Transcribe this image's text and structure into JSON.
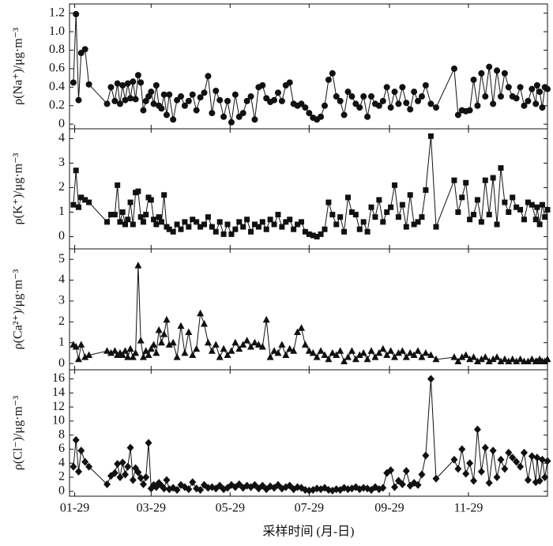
{
  "chart_data": [
    {
      "type": "line",
      "ylabel": "ρ(Na⁺)/μg·m⁻³",
      "color": "#111111",
      "marker": "circle",
      "x": [
        28,
        30,
        32,
        34,
        37,
        40,
        54,
        57,
        60,
        62,
        64,
        66,
        68,
        70,
        72,
        74,
        76,
        78,
        80,
        82,
        84,
        86,
        88,
        90,
        92,
        94,
        96,
        98,
        100,
        102,
        105,
        108,
        111,
        114,
        117,
        120,
        123,
        126,
        129,
        132,
        135,
        138,
        141,
        144,
        147,
        150,
        153,
        156,
        159,
        162,
        165,
        168,
        171,
        174,
        177,
        180,
        183,
        186,
        189,
        192,
        195,
        198,
        201,
        204,
        207,
        210,
        213,
        216,
        219,
        222,
        225,
        228,
        231,
        234,
        237,
        240,
        243,
        246,
        249,
        252,
        255,
        258,
        261,
        264,
        267,
        270,
        273,
        276,
        279,
        282,
        285,
        288,
        291,
        294,
        297,
        300,
        304,
        308,
        322,
        325,
        328,
        331,
        334,
        337,
        340,
        343,
        346,
        349,
        352,
        355,
        358,
        361,
        364,
        367,
        370,
        373,
        376,
        379,
        382,
        385,
        386,
        388,
        390,
        392,
        394
      ],
      "values": [
        0.45,
        1.19,
        0.26,
        0.77,
        0.81,
        0.43,
        0.22,
        0.4,
        0.25,
        0.44,
        0.22,
        0.42,
        0.26,
        0.44,
        0.28,
        0.46,
        0.27,
        0.53,
        0.45,
        0.15,
        0.25,
        0.3,
        0.35,
        0.22,
        0.42,
        0.2,
        0.17,
        0.32,
        0.1,
        0.32,
        0.05,
        0.26,
        0.3,
        0.2,
        0.25,
        0.32,
        0.15,
        0.29,
        0.34,
        0.52,
        0.12,
        0.36,
        0.26,
        0.08,
        0.25,
        0.02,
        0.32,
        0.08,
        0.12,
        0.25,
        0.3,
        0.05,
        0.4,
        0.42,
        0.28,
        0.24,
        0.26,
        0.34,
        0.25,
        0.42,
        0.45,
        0.22,
        0.2,
        0.22,
        0.18,
        0.12,
        0.07,
        0.05,
        0.08,
        0.2,
        0.48,
        0.55,
        0.3,
        0.25,
        0.1,
        0.35,
        0.3,
        0.22,
        0.18,
        0.3,
        0.08,
        0.3,
        0.22,
        0.2,
        0.25,
        0.4,
        0.18,
        0.35,
        0.22,
        0.4,
        0.23,
        0.16,
        0.35,
        0.25,
        0.3,
        0.42,
        0.22,
        0.18,
        0.6,
        0.1,
        0.15,
        0.14,
        0.15,
        0.48,
        0.2,
        0.55,
        0.3,
        0.62,
        0.22,
        0.58,
        0.3,
        0.55,
        0.4,
        0.3,
        0.28,
        0.4,
        0.2,
        0.25,
        0.38,
        0.22,
        0.42,
        0.35,
        0.18,
        0.4,
        0.38
      ],
      "xlim": [
        25,
        394
      ],
      "ylim": [
        -0.05,
        1.3
      ],
      "yticks": [
        0,
        0.2,
        0.4,
        0.6,
        0.8,
        {
          "value": 1,
          "label": "1.0"
        },
        1.2
      ]
    },
    {
      "type": "line",
      "ylabel": "ρ(K⁺)/μg·m⁻³",
      "color": "#111111",
      "marker": "square",
      "x": [
        28,
        30,
        32,
        34,
        37,
        40,
        54,
        57,
        60,
        62,
        64,
        66,
        68,
        70,
        72,
        74,
        76,
        78,
        80,
        82,
        84,
        86,
        88,
        90,
        92,
        94,
        96,
        98,
        100,
        102,
        105,
        108,
        111,
        114,
        117,
        120,
        123,
        126,
        129,
        132,
        135,
        138,
        141,
        144,
        147,
        150,
        153,
        156,
        159,
        162,
        165,
        168,
        171,
        174,
        177,
        180,
        183,
        186,
        189,
        192,
        195,
        198,
        201,
        204,
        207,
        210,
        213,
        216,
        219,
        222,
        225,
        228,
        231,
        234,
        237,
        240,
        243,
        246,
        249,
        252,
        255,
        258,
        261,
        264,
        267,
        270,
        273,
        276,
        279,
        282,
        285,
        288,
        291,
        294,
        297,
        300,
        304,
        308,
        322,
        325,
        328,
        331,
        334,
        337,
        340,
        343,
        346,
        349,
        352,
        355,
        358,
        361,
        364,
        367,
        370,
        373,
        376,
        379,
        382,
        385,
        386,
        388,
        390,
        392,
        394
      ],
      "values": [
        1.3,
        2.7,
        1.2,
        1.6,
        1.5,
        1.4,
        0.6,
        0.9,
        0.9,
        2.1,
        0.6,
        1.0,
        0.5,
        0.7,
        1.4,
        0.5,
        1.8,
        1.85,
        0.8,
        0.6,
        0.9,
        1.6,
        1.5,
        0.7,
        0.5,
        0.8,
        0.6,
        1.7,
        0.4,
        0.3,
        0.2,
        0.5,
        0.3,
        0.6,
        0.4,
        0.7,
        0.6,
        0.4,
        0.5,
        0.8,
        0.4,
        0.2,
        0.6,
        0.1,
        0.5,
        0.1,
        0.3,
        0.6,
        0.4,
        0.7,
        0.2,
        0.5,
        0.4,
        0.6,
        0.3,
        0.7,
        0.5,
        0.9,
        0.4,
        0.6,
        0.7,
        0.3,
        0.5,
        0.6,
        0.2,
        0.1,
        0.05,
        0,
        0.1,
        0.3,
        1.4,
        0.9,
        0.5,
        0.8,
        0.2,
        1.6,
        1.0,
        0.9,
        0.3,
        0.6,
        0.2,
        1.2,
        0.8,
        1.5,
        0.6,
        1.0,
        1.2,
        2.1,
        0.8,
        1.3,
        0.4,
        1.7,
        0.5,
        0.6,
        0.8,
        1.9,
        4.1,
        0.4,
        2.3,
        1.0,
        1.6,
        2.2,
        0.7,
        0.9,
        1.5,
        0.6,
        2.3,
        0.9,
        2.4,
        0.5,
        2.8,
        1.4,
        1.0,
        1.6,
        1.2,
        1.1,
        0.7,
        1.4,
        1.3,
        0.7,
        1.2,
        0.5,
        1.3,
        0.8,
        1.1
      ],
      "xlim": [
        25,
        394
      ],
      "ylim": [
        -0.5,
        4.4
      ],
      "yticks": [
        0,
        1,
        2,
        3,
        4
      ]
    },
    {
      "type": "line",
      "ylabel": "ρ(Ca²⁺)/μg·m⁻³",
      "color": "#111111",
      "marker": "triangle",
      "x": [
        28,
        30,
        32,
        34,
        37,
        40,
        54,
        57,
        60,
        62,
        64,
        66,
        68,
        70,
        72,
        74,
        76,
        78,
        80,
        82,
        84,
        86,
        88,
        90,
        92,
        94,
        96,
        98,
        100,
        102,
        105,
        108,
        111,
        114,
        117,
        120,
        123,
        126,
        129,
        132,
        135,
        138,
        141,
        144,
        147,
        150,
        153,
        156,
        159,
        162,
        165,
        168,
        171,
        174,
        177,
        180,
        183,
        186,
        189,
        192,
        195,
        198,
        201,
        204,
        207,
        210,
        213,
        216,
        219,
        222,
        225,
        228,
        231,
        234,
        237,
        240,
        243,
        246,
        249,
        252,
        255,
        258,
        261,
        264,
        267,
        270,
        273,
        276,
        279,
        282,
        285,
        288,
        291,
        294,
        297,
        300,
        304,
        308,
        322,
        325,
        328,
        331,
        334,
        337,
        340,
        343,
        346,
        349,
        352,
        355,
        358,
        361,
        364,
        367,
        370,
        373,
        376,
        379,
        382,
        385,
        386,
        388,
        390,
        392,
        394
      ],
      "values": [
        0.9,
        0.8,
        0.2,
        0.9,
        0.3,
        0.4,
        0.6,
        0.5,
        0.6,
        0.4,
        0.5,
        0.4,
        0.6,
        0.3,
        0.7,
        0.3,
        0.5,
        4.7,
        1.1,
        0.3,
        0.6,
        0.4,
        0.7,
        0.9,
        0.5,
        1.6,
        1.0,
        1.4,
        2.1,
        0.9,
        1.0,
        0.3,
        1.8,
        0.5,
        1.5,
        0.4,
        0.7,
        2.4,
        1.9,
        1.0,
        0.6,
        0.9,
        0.3,
        0.7,
        0.4,
        0.6,
        1.0,
        0.7,
        0.9,
        1.1,
        0.8,
        1.0,
        0.9,
        0.8,
        2.1,
        0.3,
        0.6,
        0.5,
        0.9,
        0.4,
        0.7,
        0.6,
        1.5,
        1.7,
        0.9,
        0.6,
        0.5,
        0.3,
        0.6,
        0.4,
        0.2,
        0.5,
        0.4,
        0.6,
        0.1,
        0.3,
        0.6,
        0.2,
        0.4,
        0.5,
        0.2,
        0.6,
        0.3,
        0.5,
        0.7,
        0.4,
        0.6,
        0.3,
        0.5,
        0.6,
        0.3,
        0.5,
        0.4,
        0.6,
        0.3,
        0.5,
        0.4,
        0.2,
        0.3,
        0.1,
        0.3,
        0.4,
        0.2,
        0.3,
        0.1,
        0.2,
        0.3,
        0.1,
        0.2,
        0.3,
        0.1,
        0.2,
        0.1,
        0.2,
        0.1,
        0.2,
        0.1,
        0.1,
        0.2,
        0.1,
        0.1,
        0.2,
        0.1,
        0.1,
        0.2
      ],
      "xlim": [
        25,
        394
      ],
      "ylim": [
        -0.3,
        5.5
      ],
      "yticks": [
        0,
        1,
        2,
        3,
        4,
        5
      ]
    },
    {
      "type": "line",
      "ylabel": "ρ(Cl⁻)/μg·m⁻³",
      "xlabel": "采样时间 (月-日)",
      "color": "#111111",
      "marker": "diamond",
      "x": [
        28,
        30,
        32,
        34,
        37,
        40,
        54,
        57,
        60,
        62,
        64,
        66,
        68,
        70,
        72,
        74,
        76,
        78,
        80,
        82,
        84,
        86,
        88,
        90,
        92,
        94,
        96,
        98,
        100,
        102,
        105,
        108,
        111,
        114,
        117,
        120,
        123,
        126,
        129,
        132,
        135,
        138,
        141,
        144,
        147,
        150,
        153,
        156,
        159,
        162,
        165,
        168,
        171,
        174,
        177,
        180,
        183,
        186,
        189,
        192,
        195,
        198,
        201,
        204,
        207,
        210,
        213,
        216,
        219,
        222,
        225,
        228,
        231,
        234,
        237,
        240,
        243,
        246,
        249,
        252,
        255,
        258,
        261,
        264,
        267,
        270,
        273,
        276,
        279,
        282,
        285,
        288,
        291,
        294,
        297,
        300,
        304,
        308,
        322,
        325,
        328,
        331,
        334,
        337,
        340,
        343,
        346,
        349,
        352,
        355,
        358,
        361,
        364,
        367,
        370,
        373,
        376,
        379,
        382,
        385,
        386,
        388,
        390,
        392,
        394
      ],
      "values": [
        3.5,
        7.3,
        2.8,
        5.8,
        4.2,
        3.5,
        1.0,
        2.2,
        2.6,
        3.9,
        2.0,
        4.1,
        2.4,
        3.5,
        6.2,
        1.6,
        3.3,
        2.7,
        1.9,
        1.0,
        2.0,
        6.9,
        0.4,
        0.9,
        0.6,
        1.2,
        0.8,
        0.4,
        1.6,
        0.3,
        0.5,
        0.2,
        0.9,
        0.6,
        0.3,
        1.3,
        0.4,
        0.2,
        0.9,
        0.5,
        0.6,
        0.4,
        0.8,
        0.3,
        0.5,
        0.9,
        0.6,
        1.0,
        0.5,
        0.8,
        0.6,
        0.9,
        0.4,
        0.8,
        0.3,
        0.7,
        0.5,
        0.9,
        0.4,
        0.6,
        0.8,
        0.3,
        0.6,
        0.5,
        0.2,
        0.1,
        0.2,
        0.4,
        0.3,
        0.5,
        0.2,
        0.1,
        0.3,
        0.2,
        0.5,
        0.3,
        0.4,
        0.6,
        0.3,
        0.5,
        0.4,
        0.2,
        0.6,
        0.3,
        0.5,
        2.6,
        3.0,
        0.6,
        1.5,
        1.0,
        2.9,
        0.8,
        1.2,
        0.9,
        2.4,
        5.1,
        16.0,
        1.8,
        4.5,
        3.2,
        6.0,
        2.5,
        4.0,
        1.5,
        8.8,
        2.8,
        6.2,
        1.2,
        5.8,
        2.0,
        4.5,
        3.2,
        5.5,
        4.8,
        4.2,
        3.5,
        5.5,
        1.6,
        5.0,
        1.3,
        4.8,
        1.5,
        4.5,
        2.0,
        4.3
      ],
      "xlim": [
        25,
        394
      ],
      "ylim": [
        -0.7,
        17.3
      ],
      "yticks": [
        0,
        2,
        4,
        6,
        8,
        10,
        12,
        14,
        16
      ],
      "xticks": [
        {
          "value": 29,
          "label": "01-29"
        },
        {
          "value": 88,
          "label": "03-29"
        },
        {
          "value": 149,
          "label": "05-29"
        },
        {
          "value": 210,
          "label": "07-29"
        },
        {
          "value": 272,
          "label": "09-29"
        },
        {
          "value": 333,
          "label": "11-29"
        }
      ]
    }
  ]
}
